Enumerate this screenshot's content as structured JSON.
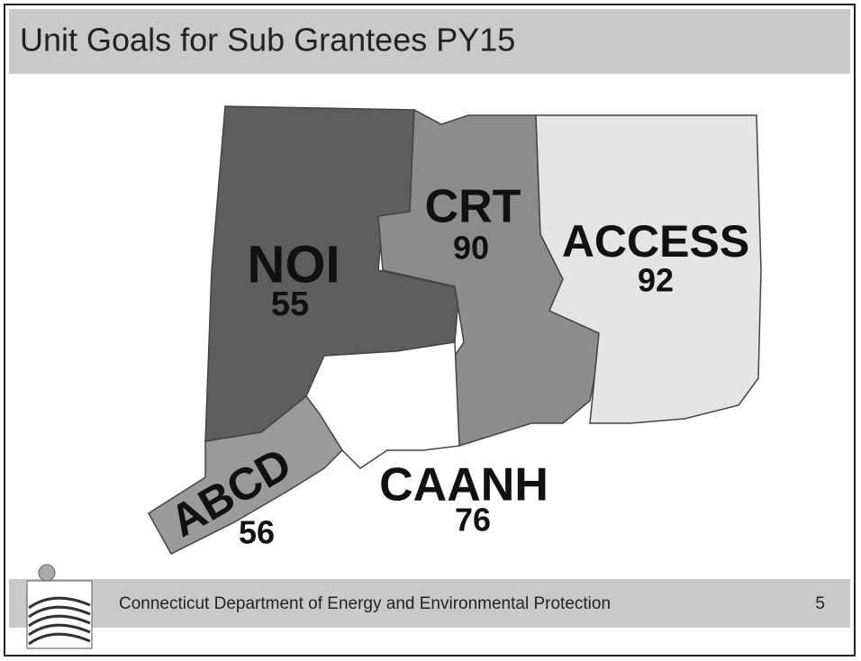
{
  "header": {
    "title": "Unit Goals for Sub Grantees PY15"
  },
  "regions": [
    {
      "name": "NOI",
      "goal": 55
    },
    {
      "name": "CRT",
      "goal": 90
    },
    {
      "name": "ACCESS",
      "goal": 92
    },
    {
      "name": "CAANH",
      "goal": 76
    },
    {
      "name": "ABCD",
      "goal": 56
    }
  ],
  "footer": {
    "text": "Connecticut Department of Energy and Environmental Protection",
    "page": 5
  }
}
